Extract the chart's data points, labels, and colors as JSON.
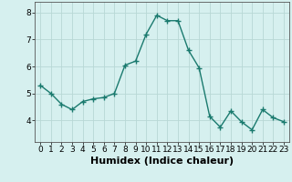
{
  "x": [
    0,
    1,
    2,
    3,
    4,
    5,
    6,
    7,
    8,
    9,
    10,
    11,
    12,
    13,
    14,
    15,
    16,
    17,
    18,
    19,
    20,
    21,
    22,
    23
  ],
  "y": [
    5.3,
    5.0,
    4.6,
    4.4,
    4.7,
    4.8,
    4.85,
    5.0,
    6.05,
    6.2,
    7.2,
    7.9,
    7.7,
    7.7,
    6.6,
    5.95,
    4.15,
    3.75,
    4.35,
    3.95,
    3.65,
    4.4,
    4.1,
    3.95
  ],
  "line_color": "#1a7a6e",
  "bg_color": "#d6f0ef",
  "grid_color": "#b8d8d5",
  "xlabel": "Humidex (Indice chaleur)",
  "ylim": [
    3.2,
    8.4
  ],
  "xlim": [
    -0.5,
    23.5
  ],
  "yticks": [
    4,
    5,
    6,
    7,
    8
  ],
  "xticks": [
    0,
    1,
    2,
    3,
    4,
    5,
    6,
    7,
    8,
    9,
    10,
    11,
    12,
    13,
    14,
    15,
    16,
    17,
    18,
    19,
    20,
    21,
    22,
    23
  ],
  "marker": "+",
  "markersize": 4,
  "linewidth": 1.0,
  "xlabel_fontsize": 8,
  "tick_fontsize": 6.5,
  "spine_color": "#555555"
}
